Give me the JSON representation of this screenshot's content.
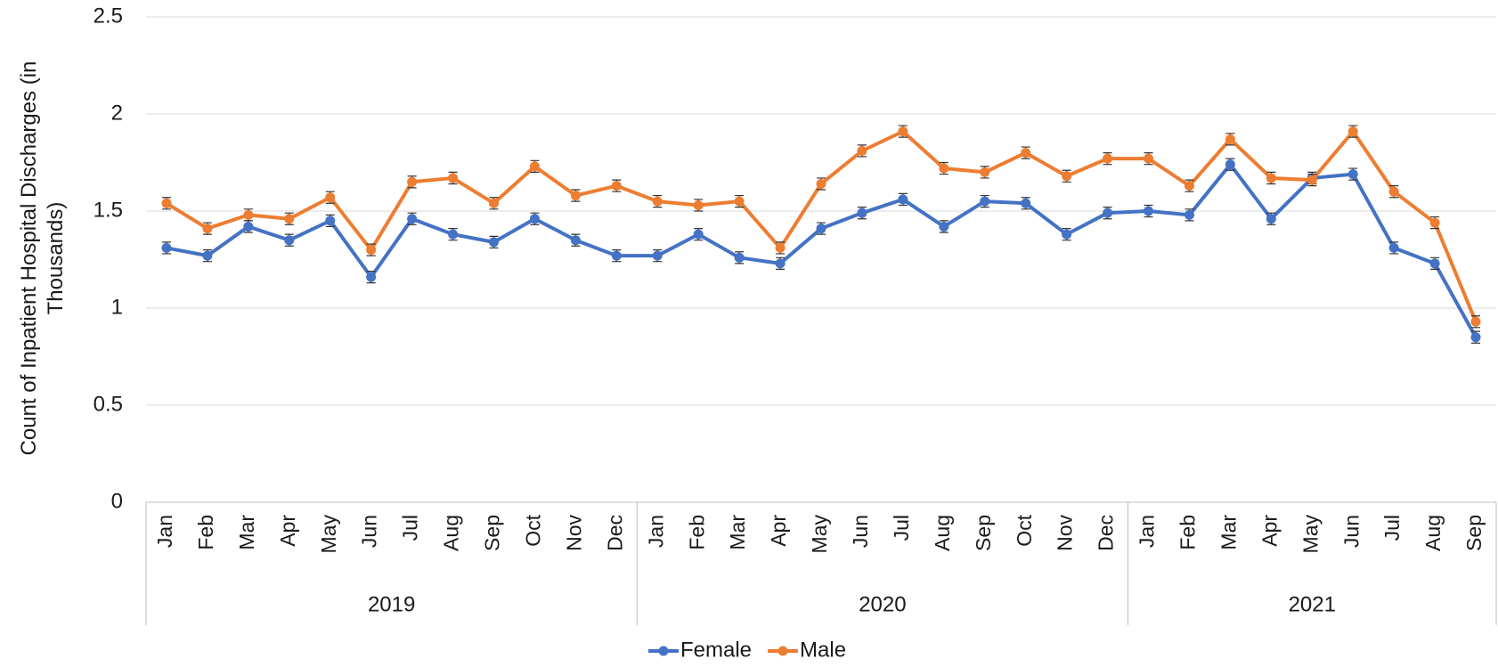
{
  "chart_data": {
    "type": "line",
    "ylabel": "Count of Inpatient Hospital Discharges (in Thousands)",
    "categories": [
      "Jan",
      "Feb",
      "Mar",
      "Apr",
      "May",
      "Jun",
      "Jul",
      "Aug",
      "Sep",
      "Oct",
      "Nov",
      "Dec",
      "Jan",
      "Feb",
      "Mar",
      "Apr",
      "May",
      "Jun",
      "Jul",
      "Aug",
      "Sep",
      "Oct",
      "Nov",
      "Dec",
      "Jan",
      "Feb",
      "Mar",
      "Apr",
      "May",
      "Jun",
      "Jul",
      "Aug",
      "Sep"
    ],
    "category_years": [
      "2019",
      "2019",
      "2019",
      "2019",
      "2019",
      "2019",
      "2019",
      "2019",
      "2019",
      "2019",
      "2019",
      "2019",
      "2020",
      "2020",
      "2020",
      "2020",
      "2020",
      "2020",
      "2020",
      "2020",
      "2020",
      "2020",
      "2020",
      "2020",
      "2021",
      "2021",
      "2021",
      "2021",
      "2021",
      "2021",
      "2021",
      "2021",
      "2021"
    ],
    "series": [
      {
        "name": "Female",
        "color": "#4472c4",
        "values": [
          1.31,
          1.27,
          1.42,
          1.35,
          1.45,
          1.16,
          1.46,
          1.38,
          1.34,
          1.46,
          1.35,
          1.27,
          1.27,
          1.38,
          1.26,
          1.23,
          1.41,
          1.49,
          1.56,
          1.42,
          1.55,
          1.54,
          1.38,
          1.49,
          1.5,
          1.48,
          1.74,
          1.46,
          1.67,
          1.69,
          1.31,
          1.23,
          0.85
        ],
        "errors": [
          0.03,
          0.03,
          0.03,
          0.03,
          0.03,
          0.03,
          0.03,
          0.03,
          0.03,
          0.03,
          0.03,
          0.03,
          0.03,
          0.03,
          0.03,
          0.03,
          0.03,
          0.03,
          0.03,
          0.03,
          0.03,
          0.03,
          0.03,
          0.03,
          0.03,
          0.03,
          0.03,
          0.03,
          0.03,
          0.03,
          0.03,
          0.03,
          0.03
        ]
      },
      {
        "name": "Male",
        "color": "#ed7d31",
        "values": [
          1.54,
          1.41,
          1.48,
          1.46,
          1.57,
          1.3,
          1.65,
          1.67,
          1.54,
          1.73,
          1.58,
          1.63,
          1.55,
          1.53,
          1.55,
          1.31,
          1.64,
          1.81,
          1.91,
          1.72,
          1.7,
          1.8,
          1.68,
          1.77,
          1.77,
          1.63,
          1.87,
          1.67,
          1.66,
          1.91,
          1.6,
          1.44,
          0.93
        ],
        "errors": [
          0.03,
          0.03,
          0.03,
          0.03,
          0.03,
          0.03,
          0.03,
          0.03,
          0.03,
          0.03,
          0.03,
          0.03,
          0.03,
          0.03,
          0.03,
          0.03,
          0.03,
          0.03,
          0.03,
          0.03,
          0.03,
          0.03,
          0.03,
          0.03,
          0.03,
          0.03,
          0.03,
          0.03,
          0.03,
          0.03,
          0.03,
          0.03,
          0.03
        ]
      }
    ],
    "ylim": [
      0,
      2.5
    ],
    "yticks": [
      0,
      0.5,
      1,
      1.5,
      2,
      2.5
    ],
    "grid": true,
    "legend": "bottom"
  }
}
